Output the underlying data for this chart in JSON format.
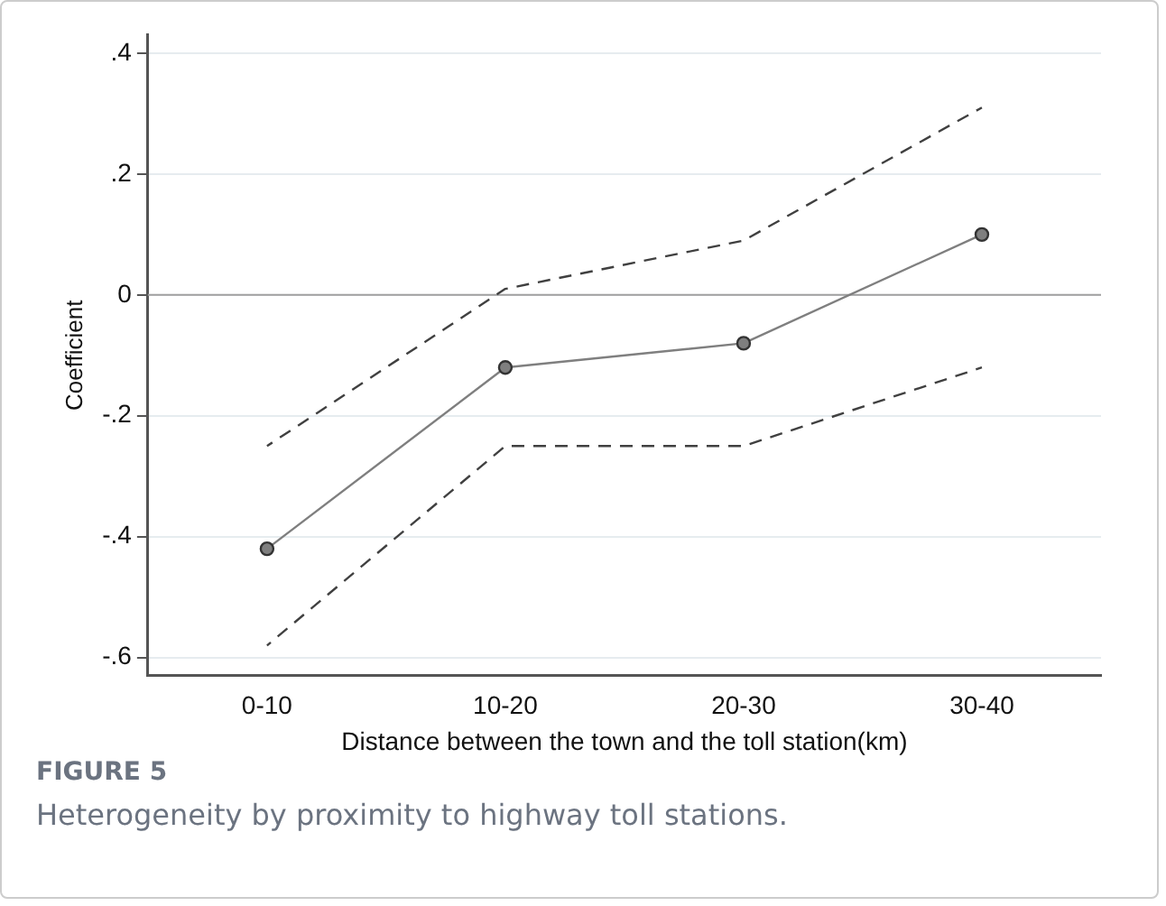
{
  "chart_data": {
    "type": "line",
    "ylabel": "Coefficient",
    "xlabel": "Distance between the town and the toll station(km)",
    "categories": [
      "0-10",
      "10-20",
      "20-30",
      "30-40"
    ],
    "series": [
      {
        "color": "#7f7f7f",
        "values": [
          -0.42,
          -0.12,
          -0.08,
          0.1
        ],
        "marker": "circle",
        "line_style": "solid"
      },
      {
        "color": "#404040",
        "values": [
          -0.25,
          0.01,
          0.09,
          0.31
        ],
        "marker": "none",
        "line_style": "dashed"
      },
      {
        "color": "#404040",
        "values": [
          -0.58,
          -0.25,
          -0.25,
          -0.12
        ],
        "marker": "none",
        "line_style": "dashed"
      }
    ],
    "ylim": [
      -0.63,
      0.43
    ],
    "yticks": [
      {
        "value": -0.6,
        "label": "-.6"
      },
      {
        "value": -0.4,
        "label": "-.4"
      },
      {
        "value": -0.2,
        "label": "-.2"
      },
      0,
      {
        "value": 0.2,
        "label": ".2"
      },
      {
        "value": 0.4,
        "label": ".4"
      }
    ],
    "grid": "y",
    "legend": false,
    "ref_lines": [
      {
        "axis": "y",
        "value": 0,
        "color": "#a0a0a0",
        "line_style": "solid"
      }
    ],
    "annotations": [
      "FIGURE 5",
      "Heterogeneity by proximity to highway toll stations."
    ]
  }
}
